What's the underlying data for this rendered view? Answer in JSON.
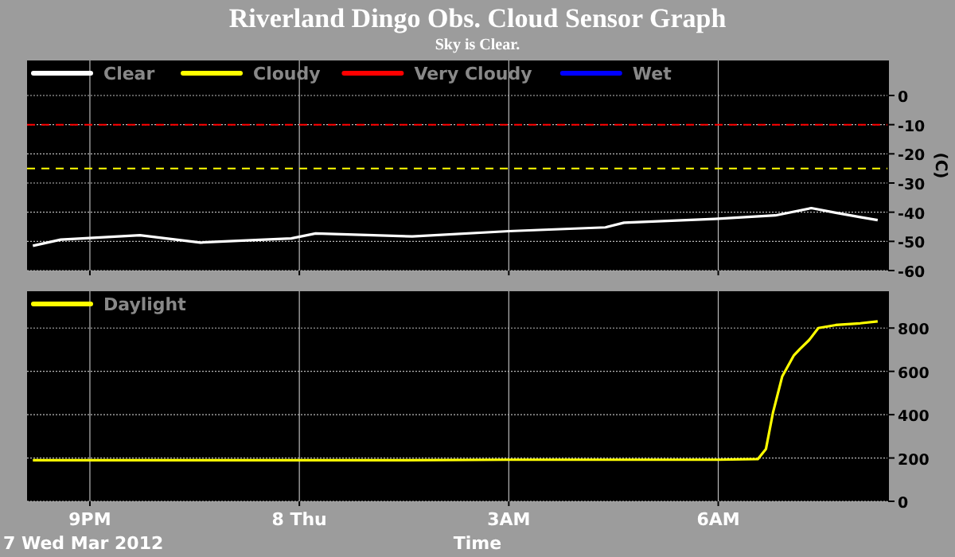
{
  "chart_data": [
    {
      "type": "line",
      "title": "Riverland Dingo Obs. Cloud Sensor Graph",
      "subtitle": "Sky is Clear.",
      "ylabel": "(C)",
      "xlim": [
        "2012-03-07T20:06",
        "2012-03-08T08:26"
      ],
      "xticks": [
        {
          "value": "2012-03-07T21:00",
          "label": null
        },
        {
          "value": "2012-03-08T00:00",
          "label": null
        },
        {
          "value": "2012-03-08T03:00",
          "label": null
        },
        {
          "value": "2012-03-08T06:00",
          "label": null
        }
      ],
      "ylim": [
        -60,
        12
      ],
      "yticks": [
        -60,
        -50,
        -40,
        -30,
        -20,
        -10,
        0
      ],
      "grid": true,
      "legend": "top left",
      "tick_labels": "y",
      "marker": "none",
      "ref_lines": [
        {
          "axis": "y",
          "value": -10,
          "color": "#ff0000",
          "line_style": "dashed"
        },
        {
          "axis": "y",
          "value": -25,
          "color": "#ffff00",
          "line_style": "dashed"
        }
      ],
      "series": [
        {
          "name": "Clear",
          "color": "#ffffff",
          "x": [
            "2012-03-07T20:11",
            "2012-03-07T20:35",
            "2012-03-07T21:43",
            "2012-03-07T22:35",
            "2012-03-07T23:53",
            "2012-03-08T00:14",
            "2012-03-08T01:37",
            "2012-03-08T03:00",
            "2012-03-08T04:23",
            "2012-03-08T04:39",
            "2012-03-08T05:57",
            "2012-03-08T06:49",
            "2012-03-08T07:20",
            "2012-03-08T07:41",
            "2012-03-08T08:02",
            "2012-03-08T08:17"
          ],
          "values": [
            -51.5,
            -49.4,
            -47.9,
            -50.4,
            -49,
            -47.3,
            -48.3,
            -46.5,
            -45.2,
            -43.6,
            -42.3,
            -41.1,
            -38.6,
            -40.2,
            -41.7,
            -42.7
          ]
        },
        {
          "name": "Cloudy",
          "color": "#ffff00"
        },
        {
          "name": "Very Cloudy",
          "color": "#ff0000"
        },
        {
          "name": "Wet",
          "color": "#0000ff"
        }
      ]
    },
    {
      "type": "line",
      "xlabel": "Time",
      "annotations": [
        "7 Wed Mar 2012"
      ],
      "xlim": [
        "2012-03-07T20:06",
        "2012-03-08T08:26"
      ],
      "xticks": [
        {
          "value": "2012-03-07T21:00",
          "label": "9PM"
        },
        {
          "value": "2012-03-08T00:00",
          "label": "8 Thu"
        },
        {
          "value": "2012-03-08T03:00",
          "label": "3AM"
        },
        {
          "value": "2012-03-08T06:00",
          "label": "6AM"
        }
      ],
      "ylim": [
        0,
        970
      ],
      "yticks": [
        0,
        200,
        400,
        600,
        800
      ],
      "grid": true,
      "legend": "top left",
      "marker": "none",
      "series": [
        {
          "name": "Daylight",
          "color": "#ffff00",
          "x": [
            "2012-03-07T20:11",
            "2012-03-07T22:00",
            "2012-03-08T00:00",
            "2012-03-08T01:30",
            "2012-03-08T03:00",
            "2012-03-08T04:30",
            "2012-03-08T06:00",
            "2012-03-08T06:34",
            "2012-03-08T06:41",
            "2012-03-08T06:47",
            "2012-03-08T06:55",
            "2012-03-08T07:05",
            "2012-03-08T07:10",
            "2012-03-08T07:18",
            "2012-03-08T07:26",
            "2012-03-08T07:41",
            "2012-03-08T08:02",
            "2012-03-08T08:17"
          ],
          "values": [
            190,
            190,
            190,
            190,
            192,
            192,
            192,
            195,
            242,
            409,
            577,
            674,
            702,
            744,
            800,
            814,
            822,
            831
          ]
        }
      ]
    }
  ]
}
